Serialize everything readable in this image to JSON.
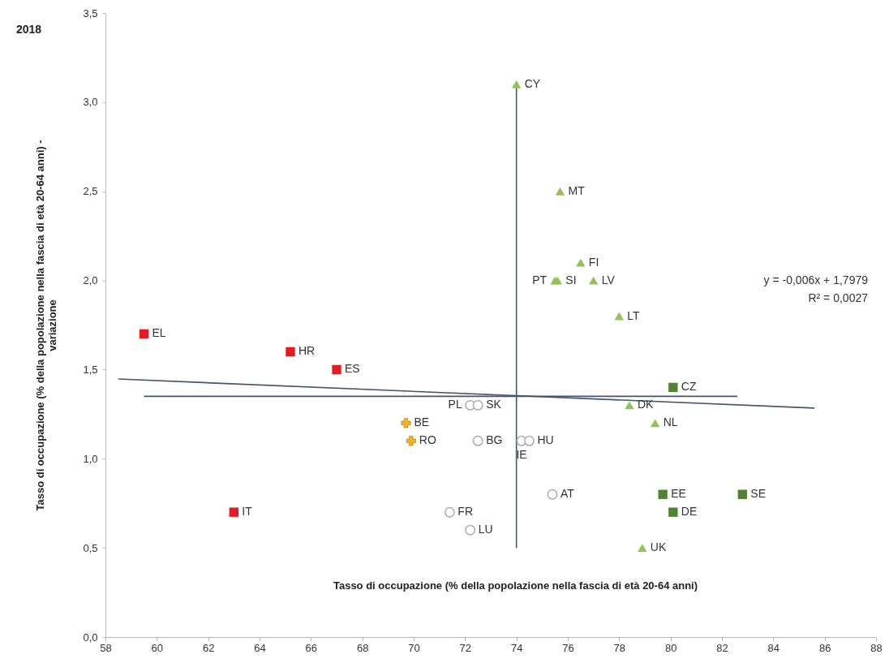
{
  "chart_data": {
    "type": "scatter",
    "title": "2018",
    "xlabel": "Tasso di occupazione (% della popolazione nella fascia di età 20-64 anni)",
    "ylabel": "Tasso di occupazione (% della popolazione nella fascia di età 20-64 anni) - variazione",
    "xlim": [
      58,
      88
    ],
    "xticks": [
      58,
      60,
      62,
      64,
      66,
      68,
      70,
      72,
      74,
      76,
      78,
      80,
      82,
      84,
      86,
      88
    ],
    "ylim": [
      0,
      3.5
    ],
    "yticks": [
      {
        "value": 0,
        "label": "0,0"
      },
      {
        "value": 0.5,
        "label": "0,5"
      },
      {
        "value": 1,
        "label": "1,0"
      },
      {
        "value": 1.5,
        "label": "1,5"
      },
      {
        "value": 2,
        "label": "2,0"
      },
      {
        "value": 2.5,
        "label": "2,5"
      },
      {
        "value": 3,
        "label": "3,0"
      },
      {
        "value": 3.5,
        "label": "3,5"
      }
    ],
    "grid": false,
    "series": [
      {
        "marker": "square",
        "color": "#e31b23",
        "x": [
          59.5,
          65.2,
          67.0,
          63.0
        ],
        "values": [
          1.7,
          1.6,
          1.5,
          0.7
        ]
      },
      {
        "marker": "cross",
        "color": "#f5b323",
        "x": [
          69.7,
          69.9
        ],
        "values": [
          1.2,
          1.1
        ]
      },
      {
        "marker": "circle",
        "color": "#a6acb8",
        "x": [
          72.2,
          72.5,
          72.5,
          74.2,
          74.5,
          71.4,
          72.2,
          75.4
        ],
        "values": [
          1.3,
          1.3,
          1.1,
          1.1,
          1.1,
          0.7,
          0.6,
          0.8
        ]
      },
      {
        "marker": "triangle",
        "color": "#92c353",
        "x": [
          74.0,
          75.7,
          76.5,
          75.5,
          75.6,
          77.0,
          78.0,
          78.4,
          79.4,
          78.9
        ],
        "values": [
          3.1,
          2.5,
          2.1,
          2.0,
          2.0,
          2.0,
          1.8,
          1.3,
          1.2,
          0.5
        ]
      },
      {
        "marker": "square",
        "color": "#548235",
        "x": [
          80.1,
          79.7,
          80.1,
          82.8
        ],
        "values": [
          1.4,
          0.8,
          0.7,
          0.8
        ]
      },
      {
        "type": "line",
        "color": "#44546a",
        "x": [
          74,
          74
        ],
        "values": [
          0.5,
          3.1
        ]
      },
      {
        "type": "line",
        "color": "#44546a",
        "x": [
          59.5,
          82.6
        ],
        "values": [
          1.35,
          1.35
        ]
      },
      {
        "type": "line",
        "color": "#44546a",
        "x": [
          58.5,
          85.6
        ],
        "values": [
          1.447,
          1.284
        ]
      }
    ],
    "annotations": [
      {
        "text": "EL",
        "x": 59.5,
        "y": 1.7
      },
      {
        "text": "HR",
        "x": 65.2,
        "y": 1.6
      },
      {
        "text": "ES",
        "x": 67.0,
        "y": 1.5
      },
      {
        "text": "IT",
        "x": 63.0,
        "y": 0.7
      },
      {
        "text": "BE",
        "x": 69.7,
        "y": 1.2
      },
      {
        "text": "RO",
        "x": 69.9,
        "y": 1.1
      },
      {
        "text": "PL",
        "x": 72.2,
        "y": 1.3
      },
      {
        "text": "SK",
        "x": 72.5,
        "y": 1.3
      },
      {
        "text": "BG",
        "x": 72.5,
        "y": 1.1
      },
      {
        "text": "IE",
        "x": 74.2,
        "y": 1.1
      },
      {
        "text": "HU",
        "x": 74.5,
        "y": 1.1
      },
      {
        "text": "FR",
        "x": 71.4,
        "y": 0.7
      },
      {
        "text": "LU",
        "x": 72.2,
        "y": 0.6
      },
      {
        "text": "AT",
        "x": 75.4,
        "y": 0.8
      },
      {
        "text": "CY",
        "x": 74.0,
        "y": 3.1
      },
      {
        "text": "MT",
        "x": 75.7,
        "y": 2.5
      },
      {
        "text": "FI",
        "x": 76.5,
        "y": 2.1
      },
      {
        "text": "PT",
        "x": 75.5,
        "y": 2.0
      },
      {
        "text": "SI",
        "x": 75.6,
        "y": 2.0
      },
      {
        "text": "LV",
        "x": 77.0,
        "y": 2.0
      },
      {
        "text": "LT",
        "x": 78.0,
        "y": 1.8
      },
      {
        "text": "DK",
        "x": 78.4,
        "y": 1.3
      },
      {
        "text": "NL",
        "x": 79.4,
        "y": 1.2
      },
      {
        "text": "UK",
        "x": 78.9,
        "y": 0.5
      },
      {
        "text": "CZ",
        "x": 80.1,
        "y": 1.4
      },
      {
        "text": "EE",
        "x": 79.7,
        "y": 0.8
      },
      {
        "text": "DE",
        "x": 80.1,
        "y": 0.7
      },
      {
        "text": "SE",
        "x": 82.8,
        "y": 0.8
      },
      "y = -0,006x + 1,7979",
      "R² = 0,0027"
    ]
  }
}
